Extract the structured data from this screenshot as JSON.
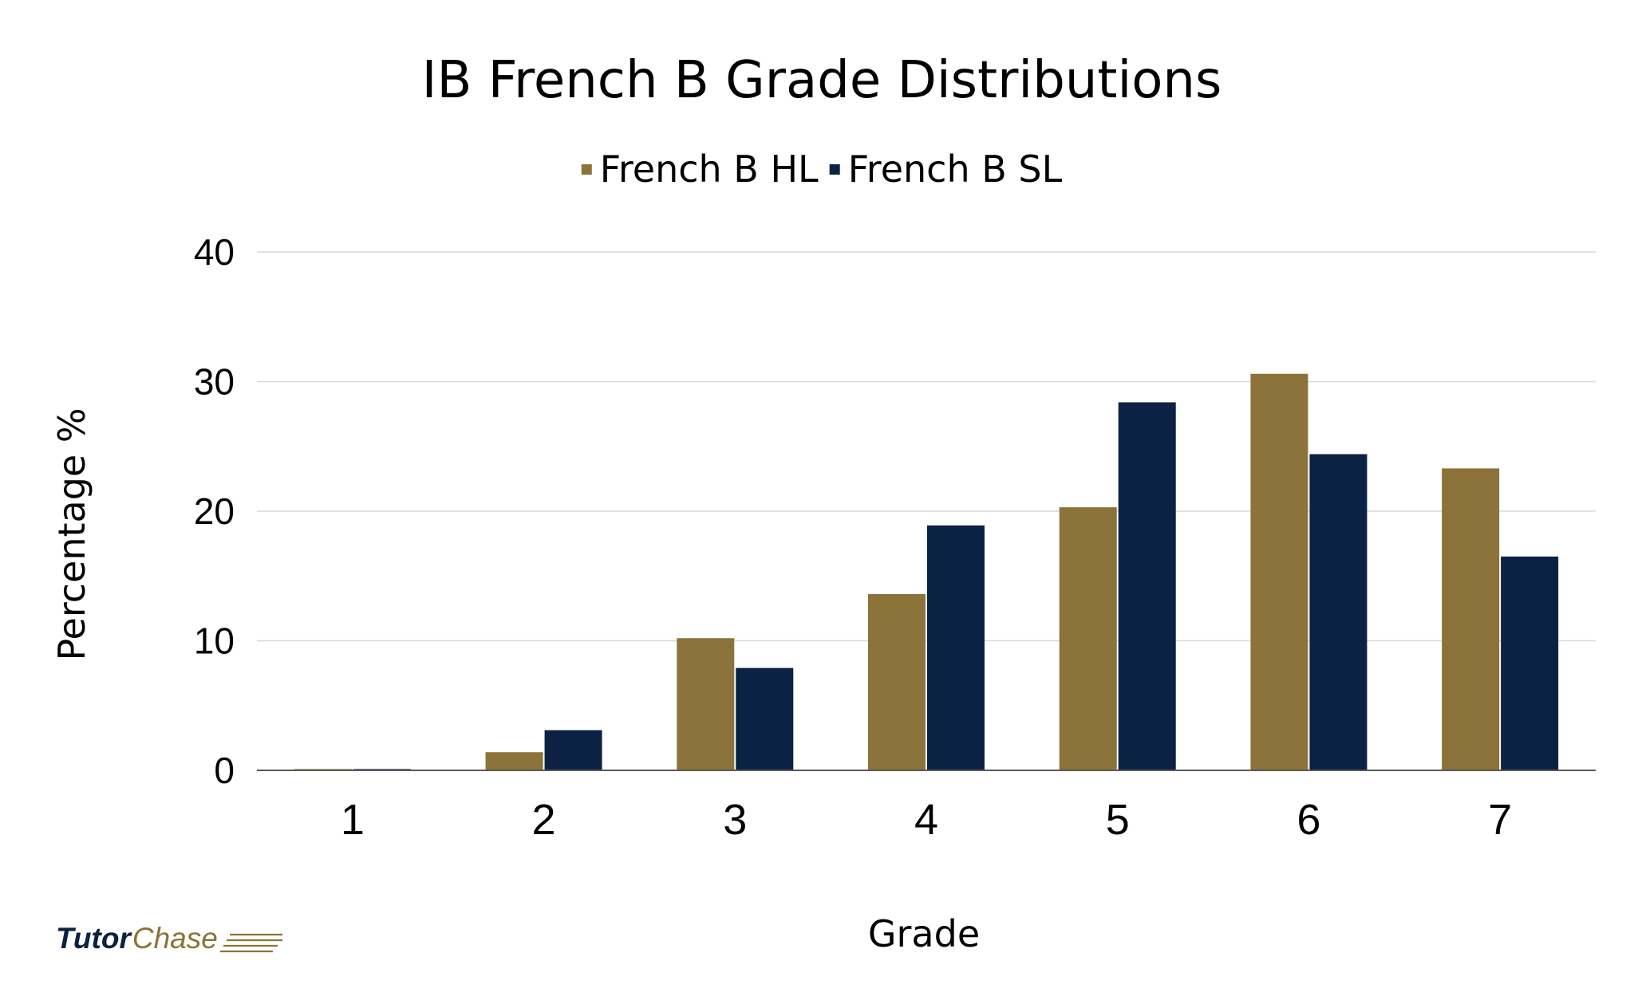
{
  "chart_data": {
    "type": "bar",
    "title": "IB French B Grade Distributions",
    "xlabel": "Grade",
    "ylabel": "Percentage %",
    "categories": [
      "1",
      "2",
      "3",
      "4",
      "5",
      "6",
      "7"
    ],
    "series": [
      {
        "name": "French B HL",
        "color": "#8b7339",
        "values": [
          0.1,
          1.4,
          10.2,
          13.6,
          20.3,
          30.6,
          23.3
        ]
      },
      {
        "name": "French B SL",
        "color": "#0b2244",
        "values": [
          0.1,
          3.1,
          7.9,
          18.9,
          28.4,
          24.4,
          16.5
        ]
      }
    ],
    "ylim": [
      0,
      40
    ],
    "yticks": [
      0,
      10,
      20,
      30,
      40
    ],
    "grid": true,
    "legend": "top-center"
  },
  "branding": {
    "logo_part1": "Tutor",
    "logo_part2": "Chase",
    "logo_icon": "speed-lines-icon"
  }
}
